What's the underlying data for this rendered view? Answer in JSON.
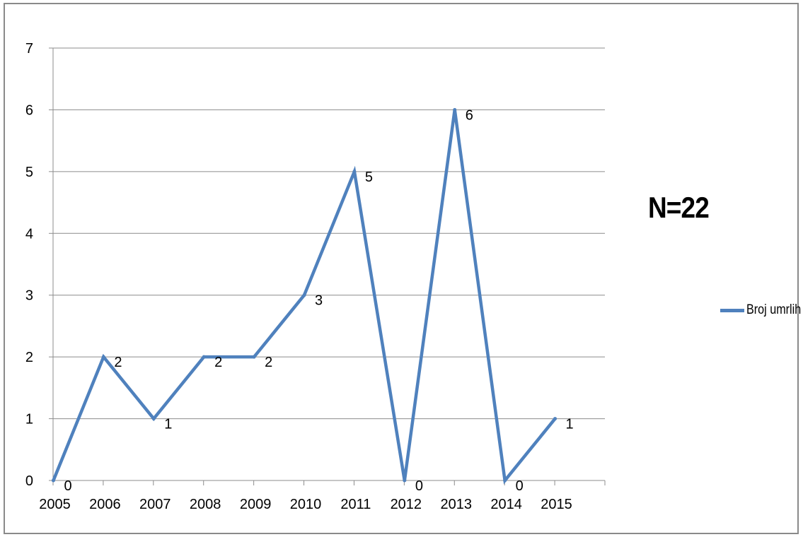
{
  "chart_data": {
    "type": "line",
    "categories": [
      "2005",
      "2006",
      "2007",
      "2008",
      "2009",
      "2010",
      "2011",
      "2012",
      "2013",
      "2014",
      "2015"
    ],
    "series": [
      {
        "name": "Broj umrlih",
        "values": [
          0,
          2,
          1,
          2,
          2,
          3,
          5,
          0,
          6,
          0,
          1
        ],
        "color": "#4f81bd"
      }
    ],
    "ylim": [
      0,
      7
    ],
    "yticks": [
      0,
      1,
      2,
      3,
      4,
      5,
      6,
      7
    ],
    "grid": true,
    "data_labels": true,
    "legend": "right",
    "annotation": "N=22"
  }
}
